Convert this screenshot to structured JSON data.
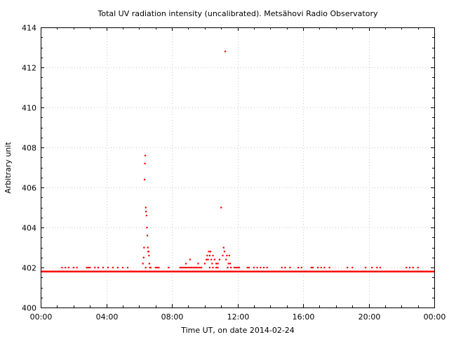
{
  "chart_data": {
    "type": "scatter",
    "title": "Total UV radiation intensity (uncalibrated). Metsähovi Radio Observatory",
    "xlabel": "Time UT, on date 2014-02-24",
    "ylabel": "Arbitrary unit",
    "xlim": [
      0,
      24
    ],
    "ylim": [
      400,
      414
    ],
    "x_tick_labels": [
      "00:00",
      "04:00",
      "08:00",
      "12:00",
      "16:00",
      "20:00",
      "00:00"
    ],
    "y_tick_labels": [
      "400",
      "402",
      "404",
      "406",
      "408",
      "410",
      "412",
      "414"
    ],
    "grid": true,
    "legend": "none",
    "marker_color": "#ff0000",
    "baseline": 401.8,
    "scatter_hours": [
      1.3,
      1.5,
      1.7,
      2.0,
      2.2,
      2.8,
      2.9,
      3.0,
      3.3,
      3.5,
      3.8,
      4.1,
      4.4,
      4.7,
      5.0,
      5.3,
      6.4,
      7.0,
      7.1,
      7.2,
      7.8,
      8.5,
      8.6,
      8.7,
      8.8,
      8.9,
      9.0,
      9.1,
      9.2,
      9.3,
      9.4,
      9.5,
      9.6,
      9.7,
      9.8,
      10.3,
      10.5,
      10.7,
      10.8,
      11.4,
      11.6,
      11.8,
      11.9,
      12.0,
      12.1,
      12.6,
      12.7,
      13.0,
      13.2,
      13.4,
      13.6,
      13.8,
      14.7,
      14.9,
      15.2,
      15.7,
      15.9,
      16.5,
      16.6,
      16.9,
      17.1,
      17.3,
      17.6,
      18.7,
      19.0,
      19.8,
      20.2,
      20.5,
      20.7,
      22.3,
      22.5,
      22.7,
      23.0
    ],
    "high_hours": [
      6.23,
      6.27,
      6.3,
      6.33,
      6.35,
      6.37,
      6.4,
      6.42,
      6.45,
      6.47,
      6.5,
      6.53,
      6.55,
      6.58,
      6.6,
      6.62,
      6.65,
      6.68,
      6.7,
      8.85,
      9.1,
      9.6,
      10.0,
      10.1,
      10.15,
      10.2,
      10.25,
      10.3,
      10.35,
      10.4,
      10.45,
      10.5,
      10.6,
      10.7,
      10.8,
      10.9,
      11.0,
      11.1,
      11.15,
      11.2,
      11.25,
      11.3,
      11.35,
      11.45,
      11.5,
      11.55
    ],
    "high_values": [
      402.2,
      402.5,
      403.0,
      406.4,
      407.2,
      407.6,
      405.0,
      404.8,
      404.6,
      404.0,
      403.6,
      403.0,
      402.8,
      402.8,
      402.6,
      402.2,
      402.0,
      402.0,
      402.0,
      402.2,
      402.4,
      402.2,
      402.2,
      402.4,
      402.6,
      402.4,
      402.8,
      402.6,
      402.8,
      402.4,
      402.2,
      402.6,
      402.4,
      402.2,
      402.2,
      402.4,
      405.0,
      402.6,
      403.0,
      402.8,
      412.8,
      402.4,
      402.6,
      402.2,
      402.6,
      402.2
    ]
  }
}
